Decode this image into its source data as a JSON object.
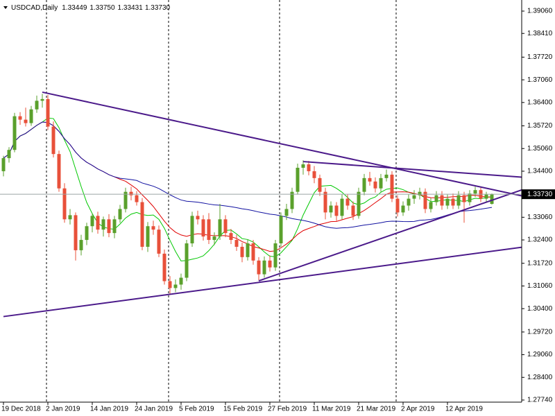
{
  "chart_data": {
    "type": "candlestick",
    "header": {
      "symbol": "USDCAD,Daily",
      "ohlc": [
        "1.33449",
        "1.33750",
        "1.33431",
        "1.33730"
      ]
    },
    "categories": [
      "19 Dec 2018",
      null,
      null,
      null,
      null,
      null,
      null,
      null,
      "2 Jan 2019",
      null,
      null,
      null,
      null,
      null,
      null,
      null,
      "14 Jan 2019",
      null,
      null,
      null,
      null,
      null,
      null,
      null,
      "24 Jan 2019",
      null,
      null,
      null,
      null,
      null,
      null,
      null,
      "5 Feb 2019",
      null,
      null,
      null,
      null,
      null,
      null,
      null,
      "15 Feb 2019",
      null,
      null,
      null,
      null,
      null,
      null,
      null,
      "27 Feb 2019",
      null,
      null,
      null,
      null,
      null,
      null,
      null,
      "11 Mar 2019",
      null,
      null,
      null,
      null,
      null,
      null,
      null,
      "21 Mar 2019",
      null,
      null,
      null,
      null,
      null,
      null,
      null,
      "2 Apr 2019",
      null,
      null,
      null,
      null,
      null,
      null,
      null,
      "12 Apr 2019",
      null,
      null,
      null,
      null,
      null,
      null,
      null,
      null
    ],
    "series": [
      {
        "name": "USDCAD",
        "up_color": "#5aa02c",
        "down_color": "#e8503a",
        "values": [
          [
            1.344,
            1.3485,
            1.3425,
            1.3478
          ],
          [
            1.3478,
            1.351,
            1.3465,
            1.3502
          ],
          [
            1.3502,
            1.361,
            1.3495,
            1.36
          ],
          [
            1.36,
            1.3612,
            1.3575,
            1.359
          ],
          [
            1.359,
            1.3625,
            1.357,
            1.358
          ],
          [
            1.358,
            1.363,
            1.3572,
            1.362
          ],
          [
            1.362,
            1.366,
            1.361,
            1.3645
          ],
          [
            1.3645,
            1.3665,
            1.3625,
            1.365
          ],
          [
            1.365,
            1.3662,
            1.356,
            1.357
          ],
          [
            1.357,
            1.3585,
            1.348,
            1.349
          ],
          [
            1.349,
            1.35,
            1.338,
            1.339
          ],
          [
            1.339,
            1.3405,
            1.329,
            1.33
          ],
          [
            1.33,
            1.333,
            1.3285,
            1.3312
          ],
          [
            1.3312,
            1.332,
            1.318,
            1.321
          ],
          [
            1.321,
            1.3255,
            1.3195,
            1.324
          ],
          [
            1.324,
            1.329,
            1.3225,
            1.328
          ],
          [
            1.328,
            1.3318,
            1.3262,
            1.331
          ],
          [
            1.331,
            1.3322,
            1.3258,
            1.327
          ],
          [
            1.327,
            1.3308,
            1.325,
            1.33
          ],
          [
            1.33,
            1.3315,
            1.3248,
            1.326
          ],
          [
            1.326,
            1.331,
            1.3245,
            1.33
          ],
          [
            1.33,
            1.3342,
            1.329,
            1.333
          ],
          [
            1.333,
            1.3392,
            1.332,
            1.338
          ],
          [
            1.338,
            1.3395,
            1.3355,
            1.337
          ],
          [
            1.337,
            1.3382,
            1.334,
            1.335
          ],
          [
            1.335,
            1.3362,
            1.321,
            1.322
          ],
          [
            1.322,
            1.3292,
            1.3205,
            1.328
          ],
          [
            1.328,
            1.3296,
            1.3255,
            1.327
          ],
          [
            1.327,
            1.3282,
            1.319,
            1.32
          ],
          [
            1.32,
            1.3212,
            1.311,
            1.312
          ],
          [
            1.312,
            1.3135,
            1.308,
            1.31
          ],
          [
            1.31,
            1.3125,
            1.3088,
            1.311
          ],
          [
            1.311,
            1.3142,
            1.3095,
            1.313
          ],
          [
            1.313,
            1.324,
            1.312,
            1.323
          ],
          [
            1.323,
            1.3322,
            1.322,
            1.331
          ],
          [
            1.331,
            1.3325,
            1.3285,
            1.33
          ],
          [
            1.33,
            1.3312,
            1.3238,
            1.325
          ],
          [
            1.33,
            1.3318,
            1.3228,
            1.324
          ],
          [
            1.324,
            1.3262,
            1.3225,
            1.325
          ],
          [
            1.325,
            1.3345,
            1.324,
            1.33
          ],
          [
            1.33,
            1.3312,
            1.3248,
            1.326
          ],
          [
            1.326,
            1.3272,
            1.3228,
            1.324
          ],
          [
            1.324,
            1.3255,
            1.3208,
            1.322
          ],
          [
            1.322,
            1.3232,
            1.3175,
            1.319
          ],
          [
            1.319,
            1.3242,
            1.318,
            1.323
          ],
          [
            1.323,
            1.324,
            1.3168,
            1.318
          ],
          [
            1.318,
            1.319,
            1.3122,
            1.314
          ],
          [
            1.314,
            1.3192,
            1.313,
            1.318
          ],
          [
            1.318,
            1.3195,
            1.3148,
            1.316
          ],
          [
            1.316,
            1.324,
            1.315,
            1.323
          ],
          [
            1.323,
            1.332,
            1.322,
            1.331
          ],
          [
            1.331,
            1.3345,
            1.3298,
            1.333
          ],
          [
            1.333,
            1.3392,
            1.3318,
            1.338
          ],
          [
            1.338,
            1.3462,
            1.3372,
            1.345
          ],
          [
            1.345,
            1.3472,
            1.343,
            1.346
          ],
          [
            1.346,
            1.347,
            1.3428,
            1.344
          ],
          [
            1.344,
            1.3455,
            1.3405,
            1.342
          ],
          [
            1.342,
            1.343,
            1.3368,
            1.338
          ],
          [
            1.338,
            1.3392,
            1.33,
            1.332
          ],
          [
            1.332,
            1.3352,
            1.3305,
            1.334
          ],
          [
            1.334,
            1.335,
            1.3295,
            1.331
          ],
          [
            1.331,
            1.3372,
            1.33,
            1.336
          ],
          [
            1.336,
            1.3372,
            1.3328,
            1.334
          ],
          [
            1.334,
            1.3352,
            1.3298,
            1.331
          ],
          [
            1.331,
            1.3392,
            1.3302,
            1.338
          ],
          [
            1.338,
            1.3432,
            1.337,
            1.342
          ],
          [
            1.342,
            1.3438,
            1.3398,
            1.341
          ],
          [
            1.341,
            1.3422,
            1.3378,
            1.339
          ],
          [
            1.339,
            1.3432,
            1.338,
            1.342
          ],
          [
            1.342,
            1.3445,
            1.341,
            1.343
          ],
          [
            1.343,
            1.344,
            1.335,
            1.336
          ],
          [
            1.336,
            1.337,
            1.3308,
            1.332
          ],
          [
            1.332,
            1.3352,
            1.331,
            1.334
          ],
          [
            1.334,
            1.3372,
            1.3325,
            1.336
          ],
          [
            1.336,
            1.3385,
            1.3345,
            1.337
          ],
          [
            1.337,
            1.3392,
            1.3358,
            1.338
          ],
          [
            1.338,
            1.339,
            1.3318,
            1.333
          ],
          [
            1.333,
            1.3362,
            1.332,
            1.335
          ],
          [
            1.335,
            1.3382,
            1.334,
            1.337
          ],
          [
            1.337,
            1.3382,
            1.3328,
            1.334
          ],
          [
            1.334,
            1.3372,
            1.333,
            1.336
          ],
          [
            1.336,
            1.3375,
            1.333,
            1.334
          ],
          [
            1.334,
            1.3382,
            1.333,
            1.337
          ],
          [
            1.337,
            1.338,
            1.329,
            1.335
          ],
          [
            1.335,
            1.3385,
            1.334,
            1.3375
          ],
          [
            1.3375,
            1.3395,
            1.3365,
            1.3385
          ],
          [
            1.3385,
            1.3392,
            1.335,
            1.336
          ],
          [
            1.336,
            1.338,
            1.335,
            1.3372
          ],
          [
            1.33449,
            1.3375,
            1.33431,
            1.3373
          ]
        ]
      }
    ],
    "ylim": [
      1.27679,
      1.39383
    ],
    "yticks": [
      {
        "value": 1.3906,
        "label": "1.39060"
      },
      {
        "value": 1.3841,
        "label": "1.38410"
      },
      {
        "value": 1.3772,
        "label": "1.37720"
      },
      {
        "value": 1.3706,
        "label": "1.37060"
      },
      {
        "value": 1.364,
        "label": "1.36400"
      },
      {
        "value": 1.3572,
        "label": "1.35720"
      },
      {
        "value": 1.3506,
        "label": "1.35060"
      },
      {
        "value": 1.344,
        "label": "1.34400"
      },
      {
        "value": 1.3306,
        "label": "1.33060"
      },
      {
        "value": 1.324,
        "label": "1.32400"
      },
      {
        "value": 1.3172,
        "label": "1.31720"
      },
      {
        "value": 1.3106,
        "label": "1.31060"
      },
      {
        "value": 1.304,
        "label": "1.30400"
      },
      {
        "value": 1.2972,
        "label": "1.29720"
      },
      {
        "value": 1.2906,
        "label": "1.29060"
      },
      {
        "value": 1.284,
        "label": "1.28400"
      },
      {
        "value": 1.2774,
        "label": "1.27740"
      }
    ],
    "current_price": {
      "value": 1.3373,
      "label": "1.33730"
    },
    "trendlines": [
      {
        "x": [
          7,
          94
        ],
        "y": [
          1.367,
          1.3366
        ]
      },
      {
        "x": [
          0,
          94
        ],
        "y": [
          1.3017,
          1.322
        ]
      },
      {
        "x": [
          46,
          94
        ],
        "y": [
          1.3121,
          1.3389
        ]
      },
      {
        "x": [
          54,
          94
        ],
        "y": [
          1.3468,
          1.3422
        ]
      }
    ],
    "trendline_color": "#4b1a8a"
  }
}
